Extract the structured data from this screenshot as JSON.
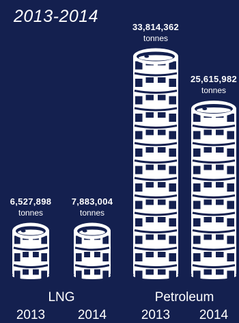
{
  "title": "2013-2014",
  "colors": {
    "background": "#14204f",
    "barrel": "#ffffff"
  },
  "chart_data": {
    "type": "bar",
    "title": "2013-2014",
    "groups": [
      "LNG",
      "Petroleum"
    ],
    "categories": [
      "2013",
      "2014",
      "2013",
      "2014"
    ],
    "unit": "tonnes",
    "series": [
      {
        "values": [
          6527898,
          7883004,
          33814362,
          25615982
        ]
      }
    ],
    "value_labels": [
      "6,527,898",
      "7,883,004",
      "33,814,362",
      "25,615,982"
    ],
    "barrel_counts": [
      3,
      3,
      13,
      10
    ],
    "icon": "oil-barrel-icon"
  }
}
